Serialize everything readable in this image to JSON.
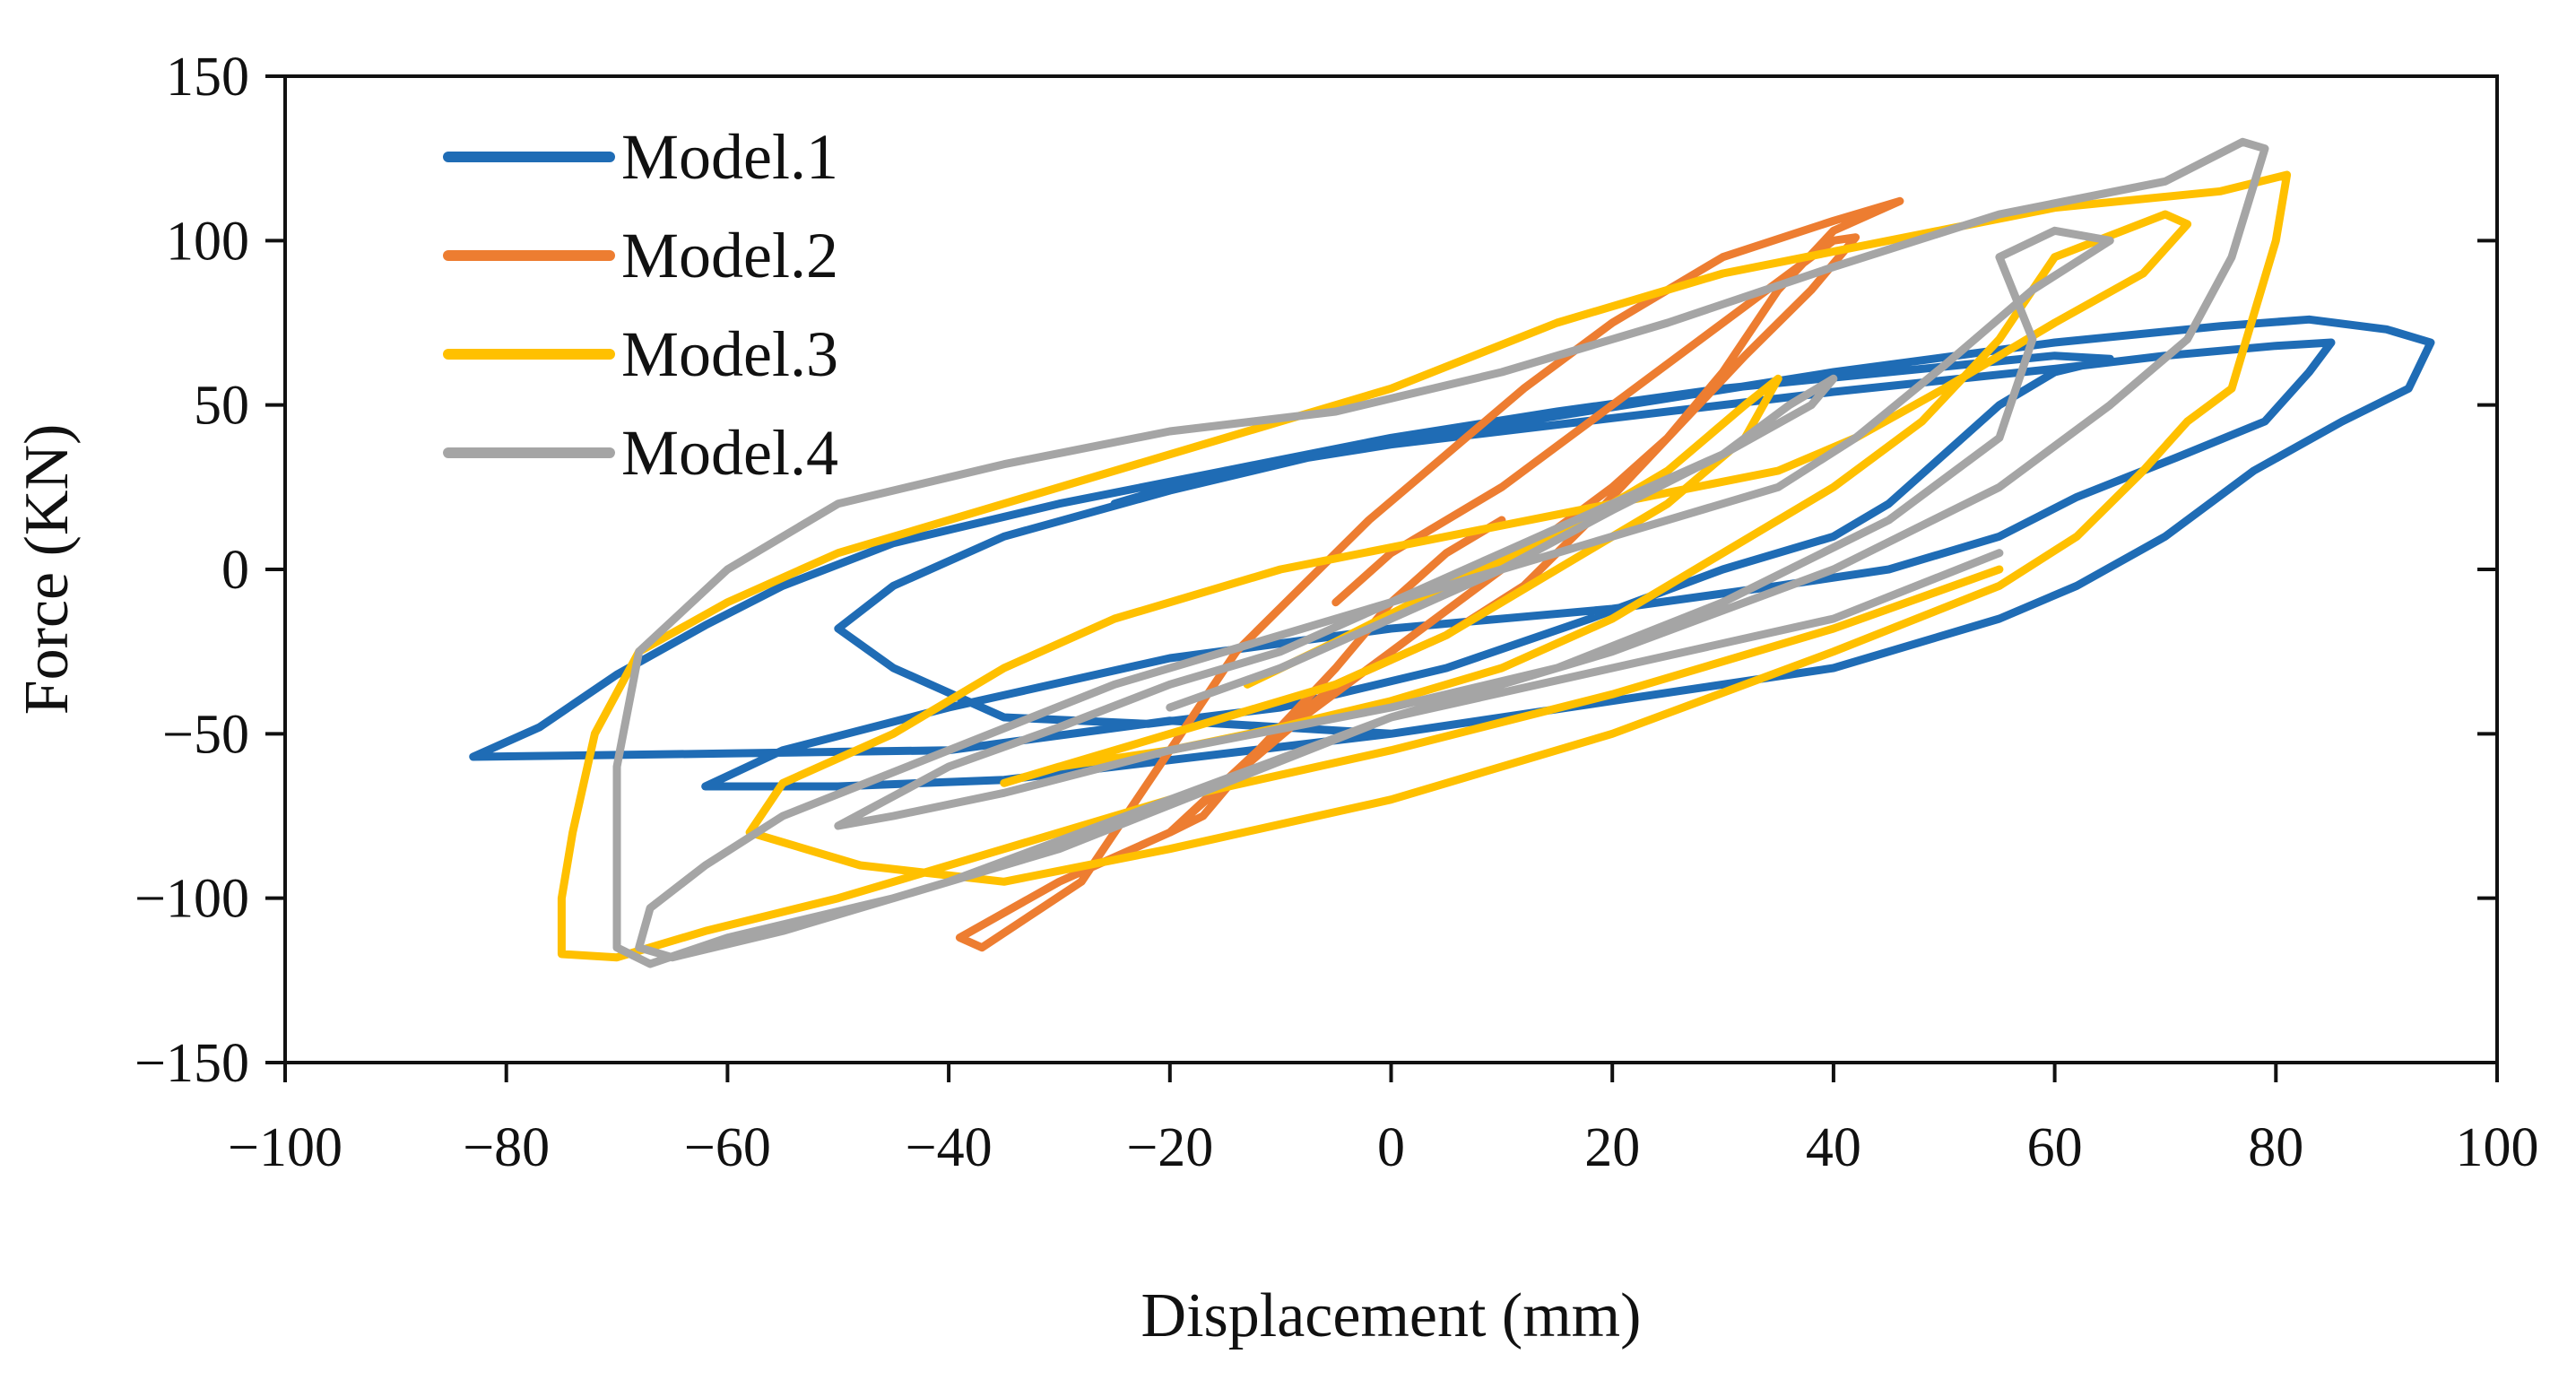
{
  "chart_data": {
    "type": "line",
    "title": "",
    "xlabel": "Displacement (mm)",
    "ylabel": "Force (KN)",
    "xlim": [
      -100,
      100
    ],
    "ylim": [
      -150,
      150
    ],
    "xticks": [
      -100,
      -80,
      -60,
      -40,
      -20,
      0,
      20,
      40,
      60,
      80,
      100
    ],
    "yticks": [
      -150,
      -100,
      -50,
      0,
      50,
      100,
      150
    ],
    "xtick_labels": [
      "−100",
      "−80",
      "−60",
      "−40",
      "−20",
      "0",
      "20",
      "40",
      "60",
      "80",
      "100"
    ],
    "ytick_labels": [
      "−150",
      "−100",
      "−50",
      "0",
      "50",
      "100",
      "150"
    ],
    "grid": false,
    "legend_position": "top-left",
    "series": [
      {
        "name": "Model.1",
        "color": "#1f6cb5",
        "points": [
          [
            0,
            -50
          ],
          [
            -20,
            -46
          ],
          [
            -40,
            -55
          ],
          [
            -60,
            -56
          ],
          [
            -83,
            -57
          ],
          [
            -77,
            -48
          ],
          [
            -70,
            -32
          ],
          [
            -62,
            -17
          ],
          [
            -55,
            -5
          ],
          [
            -45,
            8
          ],
          [
            -30,
            20
          ],
          [
            -15,
            30
          ],
          [
            0,
            38
          ],
          [
            20,
            46
          ],
          [
            40,
            54
          ],
          [
            60,
            61
          ],
          [
            70,
            65
          ],
          [
            80,
            68
          ],
          [
            85,
            69
          ],
          [
            83,
            60
          ],
          [
            79,
            45
          ],
          [
            71,
            34
          ],
          [
            62,
            22
          ],
          [
            55,
            10
          ],
          [
            45,
            0
          ],
          [
            35,
            -5
          ],
          [
            20,
            -12
          ],
          [
            0,
            -18
          ],
          [
            -20,
            -27
          ],
          [
            -40,
            -42
          ],
          [
            -55,
            -55
          ],
          [
            -62,
            -66
          ],
          [
            -50,
            -66
          ],
          [
            -35,
            -64
          ],
          [
            -20,
            -58
          ],
          [
            0,
            -50
          ],
          [
            20,
            -40
          ],
          [
            40,
            -30
          ],
          [
            55,
            -15
          ],
          [
            62,
            -5
          ],
          [
            70,
            10
          ],
          [
            78,
            30
          ],
          [
            86,
            45
          ],
          [
            92,
            55
          ],
          [
            94,
            69
          ],
          [
            90,
            73
          ],
          [
            83,
            76
          ],
          [
            75,
            74
          ],
          [
            60,
            69
          ],
          [
            40,
            60
          ],
          [
            25,
            52
          ],
          [
            10,
            44
          ],
          [
            -5,
            36
          ],
          [
            -20,
            24
          ],
          [
            -35,
            10
          ],
          [
            -45,
            -5
          ],
          [
            -50,
            -18
          ],
          [
            -45,
            -30
          ],
          [
            -35,
            -45
          ],
          [
            -22,
            -47
          ],
          [
            -10,
            -42
          ],
          [
            5,
            -30
          ],
          [
            18,
            -15
          ],
          [
            30,
            0
          ],
          [
            40,
            10
          ],
          [
            45,
            20
          ],
          [
            50,
            35
          ],
          [
            55,
            50
          ],
          [
            60,
            60
          ],
          [
            65,
            64
          ],
          [
            60,
            65
          ],
          [
            45,
            60
          ],
          [
            30,
            55
          ],
          [
            15,
            48
          ],
          [
            0,
            40
          ],
          [
            -15,
            30
          ],
          [
            -25,
            20
          ]
        ]
      },
      {
        "name": "Model.2",
        "color": "#ed7d31",
        "points": [
          [
            -5,
            -10
          ],
          [
            0,
            5
          ],
          [
            10,
            25
          ],
          [
            20,
            50
          ],
          [
            30,
            75
          ],
          [
            40,
            100
          ],
          [
            42,
            101
          ],
          [
            38,
            85
          ],
          [
            32,
            65
          ],
          [
            25,
            40
          ],
          [
            18,
            15
          ],
          [
            12,
            -5
          ],
          [
            5,
            -20
          ],
          [
            -5,
            -35
          ],
          [
            -12,
            -55
          ],
          [
            -17,
            -75
          ],
          [
            -20,
            -80
          ],
          [
            -15,
            -65
          ],
          [
            -8,
            -45
          ],
          [
            0,
            -25
          ],
          [
            10,
            0
          ],
          [
            20,
            25
          ],
          [
            25,
            40
          ],
          [
            30,
            60
          ],
          [
            35,
            85
          ],
          [
            40,
            103
          ],
          [
            46,
            112
          ],
          [
            40,
            106
          ],
          [
            30,
            95
          ],
          [
            20,
            75
          ],
          [
            12,
            55
          ],
          [
            5,
            35
          ],
          [
            -2,
            15
          ],
          [
            -8,
            -5
          ],
          [
            -14,
            -25
          ],
          [
            -20,
            -55
          ],
          [
            -28,
            -95
          ],
          [
            -37,
            -115
          ],
          [
            -39,
            -112
          ],
          [
            -30,
            -95
          ],
          [
            -20,
            -80
          ],
          [
            -12,
            -55
          ],
          [
            -5,
            -30
          ],
          [
            0,
            -10
          ],
          [
            5,
            5
          ],
          [
            10,
            15
          ]
        ]
      },
      {
        "name": "Model.3",
        "color": "#ffc000",
        "points": [
          [
            -13,
            -35
          ],
          [
            -5,
            -22
          ],
          [
            5,
            -5
          ],
          [
            15,
            10
          ],
          [
            25,
            30
          ],
          [
            32,
            50
          ],
          [
            35,
            58
          ],
          [
            32,
            40
          ],
          [
            25,
            20
          ],
          [
            15,
            0
          ],
          [
            5,
            -20
          ],
          [
            -5,
            -35
          ],
          [
            -15,
            -45
          ],
          [
            -25,
            -55
          ],
          [
            -35,
            -65
          ],
          [
            -30,
            -60
          ],
          [
            -20,
            -55
          ],
          [
            -10,
            -48
          ],
          [
            0,
            -40
          ],
          [
            10,
            -30
          ],
          [
            20,
            -15
          ],
          [
            30,
            5
          ],
          [
            40,
            25
          ],
          [
            48,
            45
          ],
          [
            55,
            70
          ],
          [
            58,
            85
          ],
          [
            60,
            95
          ],
          [
            70,
            108
          ],
          [
            72,
            105
          ],
          [
            68,
            90
          ],
          [
            60,
            75
          ],
          [
            50,
            55
          ],
          [
            42,
            40
          ],
          [
            35,
            30
          ],
          [
            20,
            20
          ],
          [
            5,
            10
          ],
          [
            -10,
            0
          ],
          [
            -25,
            -15
          ],
          [
            -35,
            -30
          ],
          [
            -45,
            -50
          ],
          [
            -55,
            -65
          ],
          [
            -58,
            -80
          ],
          [
            -48,
            -90
          ],
          [
            -35,
            -95
          ],
          [
            -20,
            -85
          ],
          [
            0,
            -70
          ],
          [
            20,
            -50
          ],
          [
            40,
            -25
          ],
          [
            55,
            -5
          ],
          [
            62,
            10
          ],
          [
            68,
            30
          ],
          [
            72,
            45
          ],
          [
            76,
            55
          ],
          [
            80,
            100
          ],
          [
            81,
            120
          ],
          [
            75,
            115
          ],
          [
            60,
            110
          ],
          [
            45,
            100
          ],
          [
            30,
            90
          ],
          [
            15,
            75
          ],
          [
            0,
            55
          ],
          [
            -20,
            35
          ],
          [
            -35,
            20
          ],
          [
            -50,
            5
          ],
          [
            -60,
            -10
          ],
          [
            -68,
            -25
          ],
          [
            -72,
            -50
          ],
          [
            -74,
            -80
          ],
          [
            -75,
            -100
          ],
          [
            -75,
            -117
          ],
          [
            -70,
            -118
          ],
          [
            -62,
            -110
          ],
          [
            -50,
            -100
          ],
          [
            -35,
            -85
          ],
          [
            -20,
            -70
          ],
          [
            0,
            -55
          ],
          [
            20,
            -38
          ],
          [
            40,
            -18
          ],
          [
            55,
            0
          ]
        ]
      },
      {
        "name": "Model.4",
        "color": "#a5a5a5",
        "points": [
          [
            -20,
            -42
          ],
          [
            -10,
            -30
          ],
          [
            0,
            -15
          ],
          [
            10,
            0
          ],
          [
            20,
            18
          ],
          [
            30,
            35
          ],
          [
            38,
            50
          ],
          [
            40,
            58
          ],
          [
            36,
            50
          ],
          [
            30,
            35
          ],
          [
            20,
            20
          ],
          [
            10,
            5
          ],
          [
            0,
            -10
          ],
          [
            -10,
            -25
          ],
          [
            -20,
            -35
          ],
          [
            -30,
            -48
          ],
          [
            -40,
            -60
          ],
          [
            -50,
            -78
          ],
          [
            -45,
            -75
          ],
          [
            -35,
            -68
          ],
          [
            -20,
            -55
          ],
          [
            0,
            -42
          ],
          [
            15,
            -30
          ],
          [
            30,
            -10
          ],
          [
            45,
            15
          ],
          [
            55,
            40
          ],
          [
            58,
            70
          ],
          [
            55,
            95
          ],
          [
            60,
            103
          ],
          [
            65,
            100
          ],
          [
            58,
            85
          ],
          [
            50,
            62
          ],
          [
            42,
            40
          ],
          [
            35,
            25
          ],
          [
            20,
            10
          ],
          [
            5,
            -5
          ],
          [
            -10,
            -20
          ],
          [
            -25,
            -35
          ],
          [
            -40,
            -55
          ],
          [
            -55,
            -75
          ],
          [
            -62,
            -90
          ],
          [
            -67,
            -103
          ],
          [
            -68,
            -115
          ],
          [
            -65,
            -118
          ],
          [
            -55,
            -110
          ],
          [
            -40,
            -95
          ],
          [
            -20,
            -70
          ],
          [
            0,
            -45
          ],
          [
            20,
            -25
          ],
          [
            40,
            0
          ],
          [
            55,
            25
          ],
          [
            65,
            50
          ],
          [
            72,
            70
          ],
          [
            76,
            95
          ],
          [
            79,
            128
          ],
          [
            77,
            130
          ],
          [
            70,
            118
          ],
          [
            55,
            108
          ],
          [
            40,
            92
          ],
          [
            25,
            75
          ],
          [
            10,
            60
          ],
          [
            -5,
            48
          ],
          [
            -20,
            42
          ],
          [
            -35,
            32
          ],
          [
            -50,
            20
          ],
          [
            -60,
            0
          ],
          [
            -68,
            -25
          ],
          [
            -70,
            -60
          ],
          [
            -70,
            -95
          ],
          [
            -70,
            -115
          ],
          [
            -67,
            -120
          ],
          [
            -60,
            -112
          ],
          [
            -45,
            -100
          ],
          [
            -30,
            -85
          ],
          [
            -15,
            -65
          ],
          [
            0,
            -45
          ],
          [
            20,
            -30
          ],
          [
            40,
            -15
          ],
          [
            55,
            5
          ]
        ]
      }
    ]
  }
}
